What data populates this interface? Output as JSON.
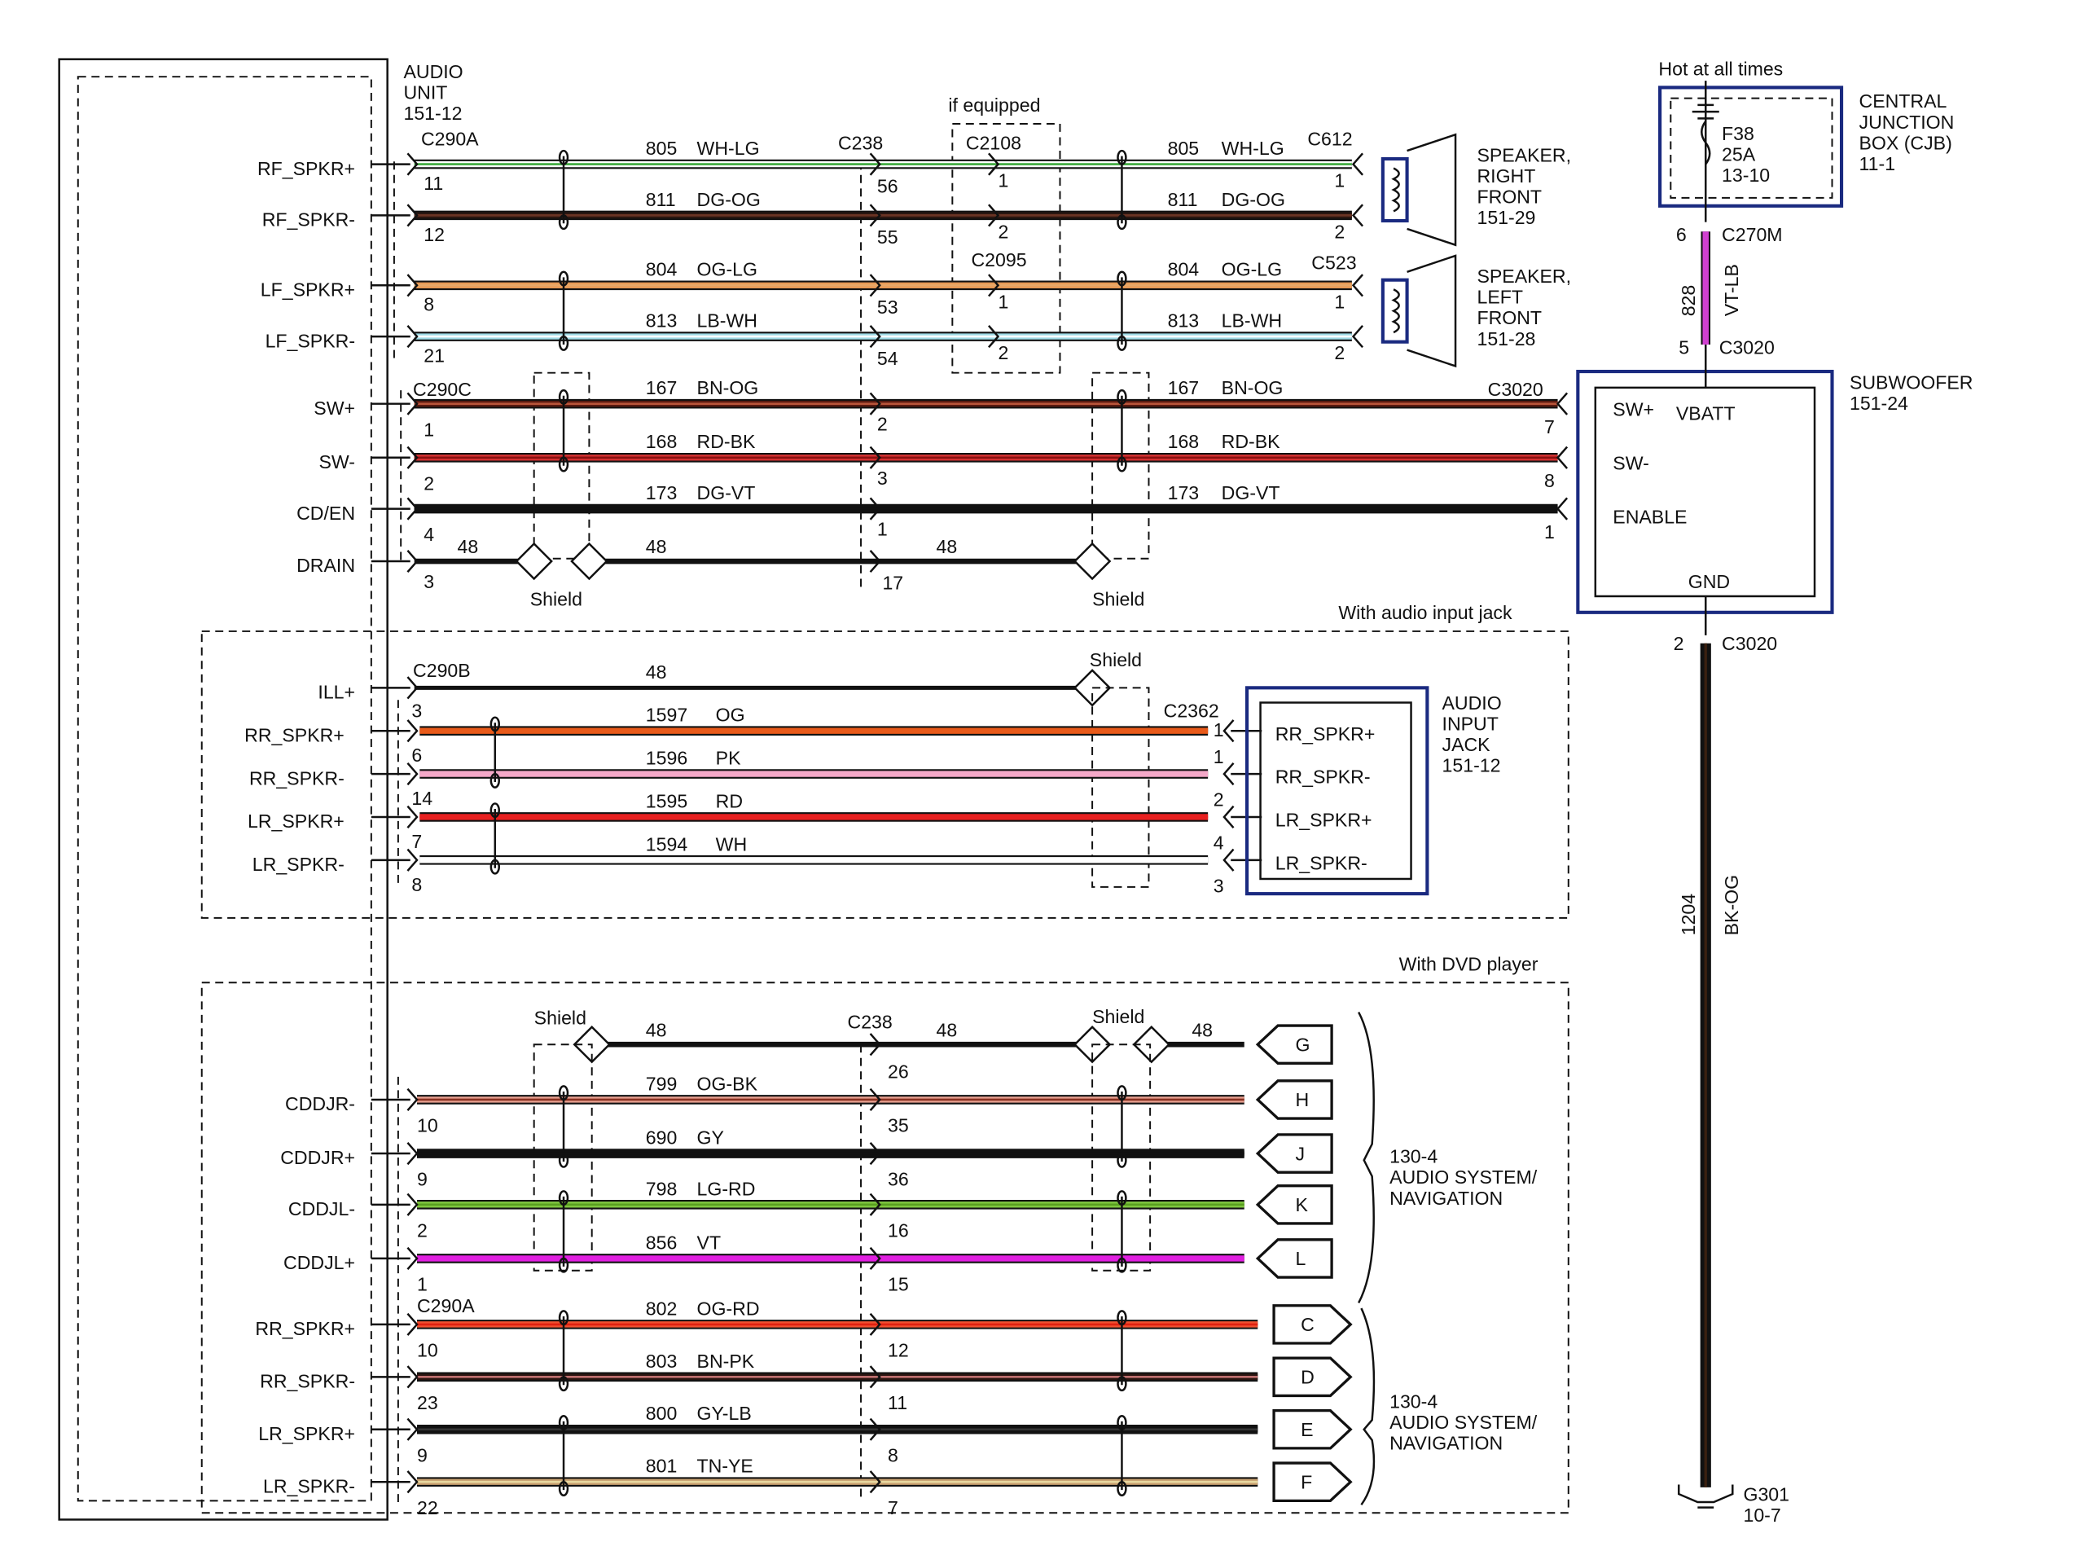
{
  "audio_unit": {
    "lines": [
      "AUDIO",
      "UNIT",
      "151-12"
    ]
  },
  "connectors": {
    "c290a": "C290A",
    "c290c": "C290C",
    "c290b": "C290B",
    "c238": "C238",
    "c238_dvd": "C238",
    "c2108": "C2108",
    "c2095": "C2095",
    "c612": "C612",
    "c523": "C523",
    "c3020_sub": "C3020",
    "c2362": "C2362",
    "c290a_dvd": "C290A",
    "c270m": "C270M",
    "c3020_top": "C3020",
    "c3020_bottom": "C3020"
  },
  "notes": {
    "if_equipped": "if equipped",
    "with_audio_input_jack": "With audio input jack",
    "with_dvd_player": "With DVD player",
    "hot_at_all_times": "Hot at all times",
    "shield": "Shield"
  },
  "front_speakers": [
    {
      "label": "RF_SPKR+",
      "pin": "11",
      "circuit": "805",
      "code": "WH-LG",
      "c238_pin": "56",
      "mid_pin": "1",
      "end_pin": "1",
      "colors": [
        "#ffffff",
        "#3caa3c"
      ]
    },
    {
      "label": "RF_SPKR-",
      "pin": "12",
      "circuit": "811",
      "code": "DG-OG",
      "c238_pin": "55",
      "mid_pin": "2",
      "end_pin": "2",
      "colors": [
        "#2a1610",
        "#6a3424"
      ]
    },
    {
      "label": "LF_SPKR+",
      "pin": "8",
      "circuit": "804",
      "code": "OG-LG",
      "c238_pin": "53",
      "mid_pin": "1",
      "end_pin": "1",
      "colors": [
        "#e89a55",
        "#e8a868"
      ]
    },
    {
      "label": "LF_SPKR-",
      "pin": "21",
      "circuit": "813",
      "code": "LB-WH",
      "c238_pin": "54",
      "mid_pin": "2",
      "end_pin": "2",
      "colors": [
        "#9fdbe6",
        "#ffffff"
      ]
    }
  ],
  "speakers": [
    {
      "lines": [
        "SPEAKER,",
        "RIGHT",
        "FRONT",
        "151-29"
      ]
    },
    {
      "lines": [
        "SPEAKER,",
        "LEFT",
        "FRONT",
        "151-28"
      ]
    }
  ],
  "subwoofer_wires": [
    {
      "label": "SW+",
      "pin": "1",
      "circuit": "167",
      "code": "BN-OG",
      "c238_pin": "2",
      "end_pin": "7",
      "colors": [
        "#5a1a10",
        "#b8553a"
      ]
    },
    {
      "label": "SW-",
      "pin": "2",
      "circuit": "168",
      "code": "RD-BK",
      "c238_pin": "3",
      "end_pin": "8",
      "colors": [
        "#d83232",
        "#8a1010"
      ]
    },
    {
      "label": "CD/EN",
      "pin": "4",
      "circuit": "173",
      "code": "DG-VT",
      "c238_pin": "1",
      "end_pin": "1",
      "colors": [
        "#111111",
        "#111111"
      ]
    }
  ],
  "drain": {
    "label": "DRAIN",
    "pin": "3",
    "circuit_a": "48",
    "circuit_b": "48",
    "circuit_c": "48",
    "c238_pin": "17"
  },
  "subwoofer": {
    "title": [
      "SUBWOOFER",
      "151-24"
    ],
    "pins": [
      "SW+",
      "VBATT",
      "SW-",
      "ENABLE",
      "GND"
    ]
  },
  "cjb": {
    "title": [
      "CENTRAL",
      "JUNCTION",
      "BOX (CJB)",
      "11-1"
    ],
    "fuse": [
      "F38",
      "25A",
      "13-10"
    ]
  },
  "power_wire": {
    "circuit": "828",
    "code": "VT-LB",
    "top_pin": "6",
    "bottom_pin": "5",
    "color": "#d040d0"
  },
  "ground_wire": {
    "circuit": "1204",
    "code": "BK-OG",
    "pin": "2",
    "ground": [
      "G301",
      "10-7"
    ]
  },
  "audio_jack": {
    "title": [
      "AUDIO",
      "INPUT",
      "JACK",
      "151-12"
    ],
    "ill": {
      "label": "ILL+",
      "circuit": "48",
      "pin": "3"
    },
    "wires": [
      {
        "label": "RR_SPKR+",
        "pin": "6",
        "circuit": "1597",
        "code": "OG",
        "jack_label": "RR_SPKR+",
        "colors": [
          "#e85a1a",
          "#e85a1a"
        ]
      },
      {
        "label": "RR_SPKR-",
        "pin": "14",
        "circuit": "1596",
        "code": "PK",
        "jack_label": "RR_SPKR-",
        "colors": [
          "#f4a8c8",
          "#f4a8c8"
        ]
      },
      {
        "label": "LR_SPKR+",
        "pin": "7",
        "circuit": "1595",
        "code": "RD",
        "jack_label": "LR_SPKR+",
        "colors": [
          "#e82020",
          "#e82020"
        ]
      },
      {
        "label": "LR_SPKR-",
        "pin": "8",
        "circuit": "1594",
        "code": "WH",
        "jack_label": "LR_SPKR-",
        "colors": [
          "#ffffff",
          "#ffffff"
        ]
      }
    ],
    "end_pins": [
      "1",
      "1",
      "2",
      "4",
      "3"
    ]
  },
  "dvd": {
    "shield_row": {
      "circuit_a": "48",
      "circuit_b": "48",
      "circuit_c": "48",
      "c238_pin": "26",
      "terminal": "G"
    },
    "wires": [
      {
        "label": "CDDJR-",
        "pin": "10",
        "circuit": "799",
        "code": "OG-BK",
        "c238_pin": "35",
        "terminal": "H",
        "colors": [
          "#e8a090",
          "#8a3020"
        ]
      },
      {
        "label": "CDDJR+",
        "pin": "9",
        "circuit": "690",
        "code": "GY",
        "c238_pin": "36",
        "terminal": "J",
        "colors": [
          "#111111",
          "#111111"
        ]
      },
      {
        "label": "CDDJL-",
        "pin": "2",
        "circuit": "798",
        "code": "LG-RD",
        "c238_pin": "16",
        "terminal": "K",
        "colors": [
          "#80c840",
          "#5aa020"
        ]
      },
      {
        "label": "CDDJL+",
        "pin": "1",
        "circuit": "856",
        "code": "VT",
        "c238_pin": "15",
        "terminal": "L",
        "colors": [
          "#e020e0",
          "#e020e0"
        ]
      },
      {
        "label": "RR_SPKR+",
        "pin": "10",
        "circuit": "802",
        "code": "OG-RD",
        "c238_pin": "12",
        "terminal": "C",
        "colors": [
          "#f05030",
          "#e02010"
        ]
      },
      {
        "label": "RR_SPKR-",
        "pin": "23",
        "circuit": "803",
        "code": "BN-PK",
        "c238_pin": "11",
        "terminal": "D",
        "colors": [
          "#2a1410",
          "#c07070"
        ]
      },
      {
        "label": "LR_SPKR+",
        "pin": "9",
        "circuit": "800",
        "code": "GY-LB",
        "c238_pin": "8",
        "terminal": "E",
        "colors": [
          "#111111",
          "#333333"
        ]
      },
      {
        "label": "LR_SPKR-",
        "pin": "22",
        "circuit": "801",
        "code": "TN-YE",
        "c238_pin": "7",
        "terminal": "F",
        "colors": [
          "#c8a070",
          "#e8d8a0"
        ]
      }
    ],
    "system_label_top": [
      "130-4",
      "AUDIO SYSTEM/",
      "NAVIGATION"
    ],
    "system_label_bottom": [
      "130-4",
      "AUDIO SYSTEM/",
      "NAVIGATION"
    ]
  }
}
